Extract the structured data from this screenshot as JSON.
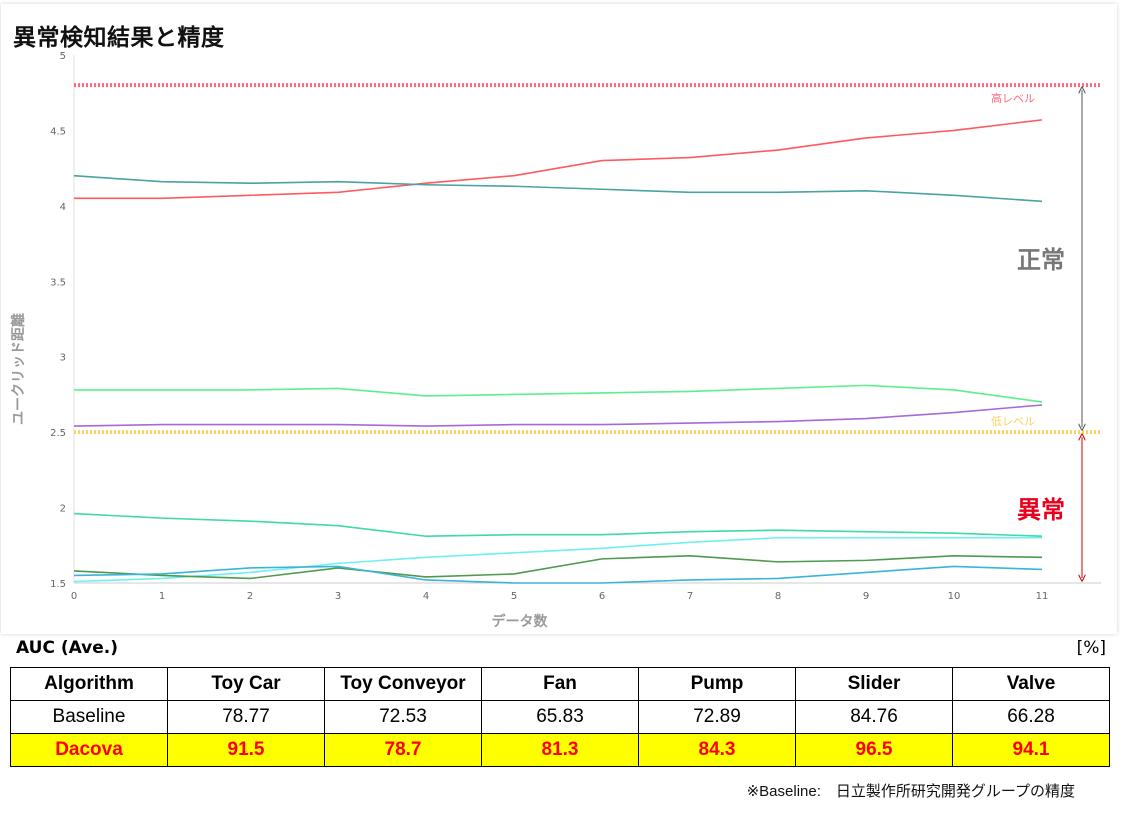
{
  "title": "異常検知結果と精度",
  "chart_data": {
    "type": "line",
    "title": "",
    "xlabel": "データ数",
    "ylabel": "ユークリッド距離",
    "xlim": [
      0,
      11.7
    ],
    "ylim": [
      1.5,
      5
    ],
    "x": [
      0,
      1,
      2,
      3,
      4,
      5,
      6,
      7,
      8,
      9,
      10,
      11
    ],
    "x_ticks": [
      "0",
      "1",
      "2",
      "3",
      "4",
      "5",
      "6",
      "7",
      "8",
      "9",
      "10",
      "11"
    ],
    "y_ticks": [
      "1.5",
      "2",
      "2.5",
      "3",
      "3.5",
      "4",
      "4.5",
      "5"
    ],
    "grid": false,
    "legend": "none",
    "thresholds": [
      {
        "label": "高レベル",
        "value": 4.8,
        "color": "#ff6680"
      },
      {
        "label": "低レベル",
        "value": 2.5,
        "color": "#ffd060"
      }
    ],
    "zones": [
      {
        "label": "正常",
        "from": 2.5,
        "to": 4.8,
        "color": "#777777",
        "arrow_color": "#555555"
      },
      {
        "label": "異常",
        "from": 1.5,
        "to": 2.5,
        "color": "#e8001c",
        "arrow_color": "#cc0000"
      }
    ],
    "series": [
      {
        "color": "#ff5a5f",
        "values": [
          4.05,
          4.05,
          4.07,
          4.09,
          4.15,
          4.2,
          4.3,
          4.32,
          4.37,
          4.45,
          4.5,
          4.57
        ]
      },
      {
        "color": "#4aa3a0",
        "values": [
          4.2,
          4.16,
          4.15,
          4.16,
          4.14,
          4.13,
          4.11,
          4.09,
          4.09,
          4.1,
          4.07,
          4.03
        ]
      },
      {
        "color": "#5cf08a",
        "values": [
          2.78,
          2.78,
          2.78,
          2.79,
          2.74,
          2.75,
          2.76,
          2.77,
          2.79,
          2.81,
          2.78,
          2.7
        ]
      },
      {
        "color": "#a46bd8",
        "values": [
          2.54,
          2.55,
          2.55,
          2.55,
          2.54,
          2.55,
          2.55,
          2.56,
          2.57,
          2.59,
          2.63,
          2.68
        ]
      },
      {
        "color": "#3fd9a8",
        "values": [
          1.96,
          1.93,
          1.91,
          1.88,
          1.81,
          1.82,
          1.82,
          1.84,
          1.85,
          1.84,
          1.83,
          1.81
        ]
      },
      {
        "color": "#6ff0f0",
        "values": [
          1.51,
          1.53,
          1.57,
          1.63,
          1.67,
          1.7,
          1.73,
          1.77,
          1.8,
          1.8,
          1.8,
          1.8
        ]
      },
      {
        "color": "#4e9a4e",
        "values": [
          1.58,
          1.55,
          1.53,
          1.6,
          1.54,
          1.56,
          1.66,
          1.68,
          1.64,
          1.65,
          1.68,
          1.67
        ]
      },
      {
        "color": "#3ab4d8",
        "values": [
          1.55,
          1.56,
          1.6,
          1.61,
          1.52,
          1.5,
          1.5,
          1.52,
          1.53,
          1.57,
          1.61,
          1.59
        ]
      }
    ]
  },
  "table": {
    "title": "AUC (Ave.)",
    "unit": "[%]",
    "headers": [
      "Algorithm",
      "Toy Car",
      "Toy Conveyor",
      "Fan",
      "Pump",
      "Slider",
      "Valve"
    ],
    "baseline": [
      "Baseline",
      "78.77",
      "72.53",
      "65.83",
      "72.89",
      "84.76",
      "66.28"
    ],
    "dacova": [
      "Dacova",
      "91.5",
      "78.7",
      "81.3",
      "84.3",
      "96.5",
      "94.1"
    ]
  },
  "footnote": "※Baseline:　日立製作所研究開発グループの精度"
}
